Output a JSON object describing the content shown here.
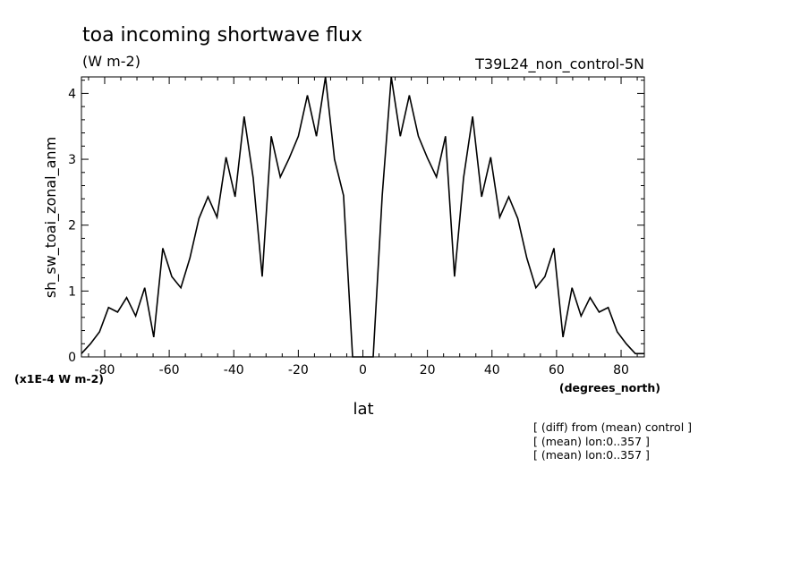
{
  "chart_data": {
    "type": "line",
    "title": "toa incoming shortwave flux",
    "subtitle": "(W m-2)",
    "run_label": "T39L24_non_control-5N",
    "ylabel": "sh_sw_toai_zonal_anm",
    "xlabel": "lat",
    "x_units": "(degrees_north)",
    "y_scale_note": "(x1E-4 W m-2)",
    "notes": [
      "[ (diff) from (mean) control ]",
      "[ (mean) lon:0..357 ]",
      "[ (mean) lon:0..357 ]"
    ],
    "xlim": [
      -87.2,
      87.2
    ],
    "ylim": [
      0,
      4.25
    ],
    "x_ticks": [
      -80,
      -60,
      -40,
      -20,
      0,
      20,
      40,
      60,
      80
    ],
    "x_tick_labels": [
      "-80",
      "-60",
      "-40",
      "-20",
      "0",
      "20",
      "40",
      "60",
      "80"
    ],
    "y_ticks": [
      0,
      1,
      2,
      3,
      4
    ],
    "y_tick_labels": [
      "0",
      "1",
      "2",
      "3",
      "4"
    ],
    "series": [
      {
        "x": [
          -87.2,
          -84.4,
          -81.6,
          -78.8,
          -76.0,
          -73.2,
          -70.4,
          -67.6,
          -64.8,
          -62.0,
          -59.2,
          -56.4,
          -53.6,
          -50.8,
          -48.0,
          -45.2,
          -42.4,
          -39.6,
          -36.8,
          -34.0,
          -31.2,
          -28.4,
          -25.6,
          -22.8,
          -20.0,
          -17.2,
          -14.4,
          -11.6,
          -8.8,
          -6.0,
          -3.2,
          -0.4,
          0.4,
          3.2,
          6.0,
          8.8,
          11.6,
          14.4,
          17.2,
          20.0,
          22.8,
          25.6,
          28.4,
          31.2,
          34.0,
          36.8,
          39.6,
          42.4,
          45.2,
          48.0,
          50.8,
          53.6,
          56.4,
          59.2,
          62.0,
          64.8,
          67.6,
          70.4,
          73.2,
          76.0,
          78.8,
          81.6,
          84.4,
          87.2
        ],
        "y": [
          0.05,
          0.2,
          0.38,
          0.75,
          0.68,
          0.9,
          0.62,
          1.05,
          0.3,
          1.65,
          1.22,
          1.05,
          1.5,
          2.1,
          2.43,
          2.12,
          3.03,
          2.43,
          3.65,
          2.72,
          1.22,
          3.35,
          2.73,
          3.02,
          3.35,
          3.97,
          3.35,
          4.25,
          3.0,
          2.45,
          0.0,
          0.0,
          0.0,
          0.0,
          2.45,
          4.25,
          3.35,
          3.97,
          3.35,
          3.02,
          2.73,
          3.35,
          1.22,
          2.72,
          3.65,
          2.43,
          3.03,
          2.12,
          2.43,
          2.1,
          1.5,
          1.05,
          1.22,
          1.65,
          0.3,
          1.05,
          0.62,
          0.9,
          0.68,
          0.75,
          0.38,
          0.2,
          0.05,
          0.05
        ]
      }
    ],
    "grid": false,
    "legend": "none"
  }
}
